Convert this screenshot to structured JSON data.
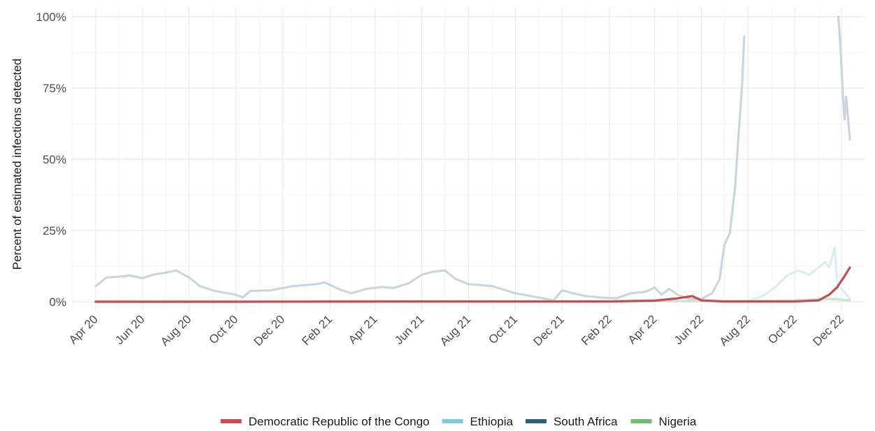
{
  "chart_data": {
    "type": "line",
    "title": "",
    "xlabel": "",
    "ylabel": "Percent of estimated infections detected",
    "x_range": [
      "2020-03-01",
      "2023-01-01"
    ],
    "ylim": [
      0,
      100
    ],
    "y_ticks": [
      0,
      25,
      50,
      75,
      100
    ],
    "y_tick_labels": [
      "0%",
      "25%",
      "50%",
      "75%",
      "100%"
    ],
    "x_ticks": [
      {
        "date": "2020-04-01",
        "label": "Apr 20"
      },
      {
        "date": "2020-06-01",
        "label": "Jun 20"
      },
      {
        "date": "2020-08-01",
        "label": "Aug 20"
      },
      {
        "date": "2020-10-01",
        "label": "Oct 20"
      },
      {
        "date": "2020-12-01",
        "label": "Dec 20"
      },
      {
        "date": "2021-02-01",
        "label": "Feb 21"
      },
      {
        "date": "2021-04-01",
        "label": "Apr 21"
      },
      {
        "date": "2021-06-01",
        "label": "Jun 21"
      },
      {
        "date": "2021-08-01",
        "label": "Aug 21"
      },
      {
        "date": "2021-10-01",
        "label": "Oct 21"
      },
      {
        "date": "2021-12-01",
        "label": "Dec 21"
      },
      {
        "date": "2022-02-01",
        "label": "Feb 22"
      },
      {
        "date": "2022-04-01",
        "label": "Apr 22"
      },
      {
        "date": "2022-06-01",
        "label": "Jun 22"
      },
      {
        "date": "2022-08-01",
        "label": "Aug 22"
      },
      {
        "date": "2022-10-01",
        "label": "Oct 22"
      },
      {
        "date": "2022-12-01",
        "label": "Dec 22"
      }
    ],
    "grid": true,
    "legend_position": "bottom",
    "series": [
      {
        "name": "South Africa",
        "color": "#c9d6dd",
        "points": [
          [
            "2020-04-01",
            5.5
          ],
          [
            "2020-04-15",
            8.5
          ],
          [
            "2020-05-01",
            8.8
          ],
          [
            "2020-05-15",
            9.2
          ],
          [
            "2020-06-01",
            8.3
          ],
          [
            "2020-06-15",
            9.5
          ],
          [
            "2020-07-01",
            10.2
          ],
          [
            "2020-07-15",
            11.0
          ],
          [
            "2020-08-01",
            8.5
          ],
          [
            "2020-08-15",
            5.5
          ],
          [
            "2020-09-01",
            4.0
          ],
          [
            "2020-09-15",
            3.2
          ],
          [
            "2020-10-01",
            2.5
          ],
          [
            "2020-10-10",
            1.5
          ],
          [
            "2020-10-20",
            3.8
          ],
          [
            "2020-11-15",
            4.0
          ],
          [
            "2020-12-15",
            5.5
          ],
          [
            "2021-01-15",
            6.2
          ],
          [
            "2021-01-25",
            6.8
          ],
          [
            "2021-02-15",
            4.2
          ],
          [
            "2021-03-01",
            3.0
          ],
          [
            "2021-03-20",
            4.5
          ],
          [
            "2021-04-10",
            5.2
          ],
          [
            "2021-04-25",
            4.8
          ],
          [
            "2021-05-15",
            6.5
          ],
          [
            "2021-06-01",
            9.5
          ],
          [
            "2021-06-15",
            10.5
          ],
          [
            "2021-07-01",
            11.0
          ],
          [
            "2021-07-15",
            8.0
          ],
          [
            "2021-08-01",
            6.2
          ],
          [
            "2021-09-01",
            5.5
          ],
          [
            "2021-10-01",
            3.0
          ],
          [
            "2021-11-01",
            1.5
          ],
          [
            "2021-11-20",
            0.5
          ],
          [
            "2021-12-01",
            4.0
          ],
          [
            "2021-12-15",
            3.0
          ],
          [
            "2022-01-01",
            2.0
          ],
          [
            "2022-01-20",
            1.5
          ],
          [
            "2022-02-10",
            1.2
          ],
          [
            "2022-03-01",
            3.0
          ],
          [
            "2022-03-20",
            3.5
          ],
          [
            "2022-04-01",
            5.0
          ],
          [
            "2022-04-10",
            2.5
          ],
          [
            "2022-04-20",
            4.5
          ],
          [
            "2022-05-01",
            2.5
          ],
          [
            "2022-05-15",
            1.0
          ],
          [
            "2022-06-01",
            1.0
          ],
          [
            "2022-06-15",
            3.0
          ],
          [
            "2022-06-25",
            8.0
          ],
          [
            "2022-07-01",
            20.0
          ],
          [
            "2022-07-08",
            24.0
          ],
          [
            "2022-07-15",
            40.0
          ],
          [
            "2022-07-20",
            60.0
          ],
          [
            "2022-07-24",
            75.0
          ],
          [
            "2022-07-27",
            93.0
          ]
        ],
        "points_b": [
          [
            "2022-11-27",
            100.0
          ],
          [
            "2022-11-30",
            88.0
          ],
          [
            "2022-12-03",
            72.0
          ],
          [
            "2022-12-05",
            64.0
          ],
          [
            "2022-12-07",
            72.0
          ],
          [
            "2022-12-09",
            66.0
          ],
          [
            "2022-12-12",
            57.0
          ]
        ]
      },
      {
        "name": "Ethiopia",
        "color": "#daeff2",
        "points": [
          [
            "2020-04-01",
            0.3
          ],
          [
            "2020-08-01",
            0.2
          ],
          [
            "2021-01-01",
            0.2
          ],
          [
            "2021-06-01",
            0.2
          ],
          [
            "2021-12-01",
            0.2
          ],
          [
            "2022-06-01",
            0.2
          ],
          [
            "2022-08-01",
            0.3
          ],
          [
            "2022-08-20",
            2.0
          ],
          [
            "2022-09-05",
            5.0
          ],
          [
            "2022-09-20",
            9.0
          ],
          [
            "2022-10-05",
            11.0
          ],
          [
            "2022-10-20",
            9.5
          ],
          [
            "2022-11-01",
            12.0
          ],
          [
            "2022-11-10",
            14.0
          ],
          [
            "2022-11-15",
            12.0
          ],
          [
            "2022-11-22",
            19.0
          ],
          [
            "2022-11-26",
            5.5
          ],
          [
            "2022-12-03",
            4.0
          ],
          [
            "2022-12-12",
            1.0
          ]
        ]
      },
      {
        "name": "Nigeria",
        "color": "#c8e6c9",
        "points": [
          [
            "2020-04-01",
            0.2
          ],
          [
            "2020-08-01",
            0.2
          ],
          [
            "2021-01-01",
            0.2
          ],
          [
            "2021-06-01",
            0.2
          ],
          [
            "2021-12-01",
            0.2
          ],
          [
            "2022-06-01",
            0.2
          ],
          [
            "2022-10-01",
            0.5
          ],
          [
            "2022-11-15",
            1.0
          ],
          [
            "2022-12-12",
            0.5
          ]
        ]
      },
      {
        "name": "Democratic Republic of the Congo",
        "color": "#c44e52",
        "points": [
          [
            "2020-04-01",
            0.0
          ],
          [
            "2020-10-01",
            0.0
          ],
          [
            "2021-06-01",
            0.1
          ],
          [
            "2021-11-01",
            0.1
          ],
          [
            "2022-02-01",
            0.1
          ],
          [
            "2022-04-01",
            0.4
          ],
          [
            "2022-05-01",
            1.2
          ],
          [
            "2022-05-20",
            2.0
          ],
          [
            "2022-06-01",
            0.5
          ],
          [
            "2022-07-01",
            0.1
          ],
          [
            "2022-10-01",
            0.1
          ],
          [
            "2022-11-01",
            0.5
          ],
          [
            "2022-11-15",
            2.5
          ],
          [
            "2022-11-25",
            5.0
          ],
          [
            "2022-12-05",
            9.0
          ],
          [
            "2022-12-12",
            12.0
          ]
        ]
      }
    ],
    "legend": [
      {
        "label": "Democratic Republic of the Congo",
        "color": "#c44e52"
      },
      {
        "label": "Ethiopia",
        "color": "#7fcad8"
      },
      {
        "label": "South Africa",
        "color": "#2c5f80"
      },
      {
        "label": "Nigeria",
        "color": "#6dbd6f"
      }
    ]
  }
}
